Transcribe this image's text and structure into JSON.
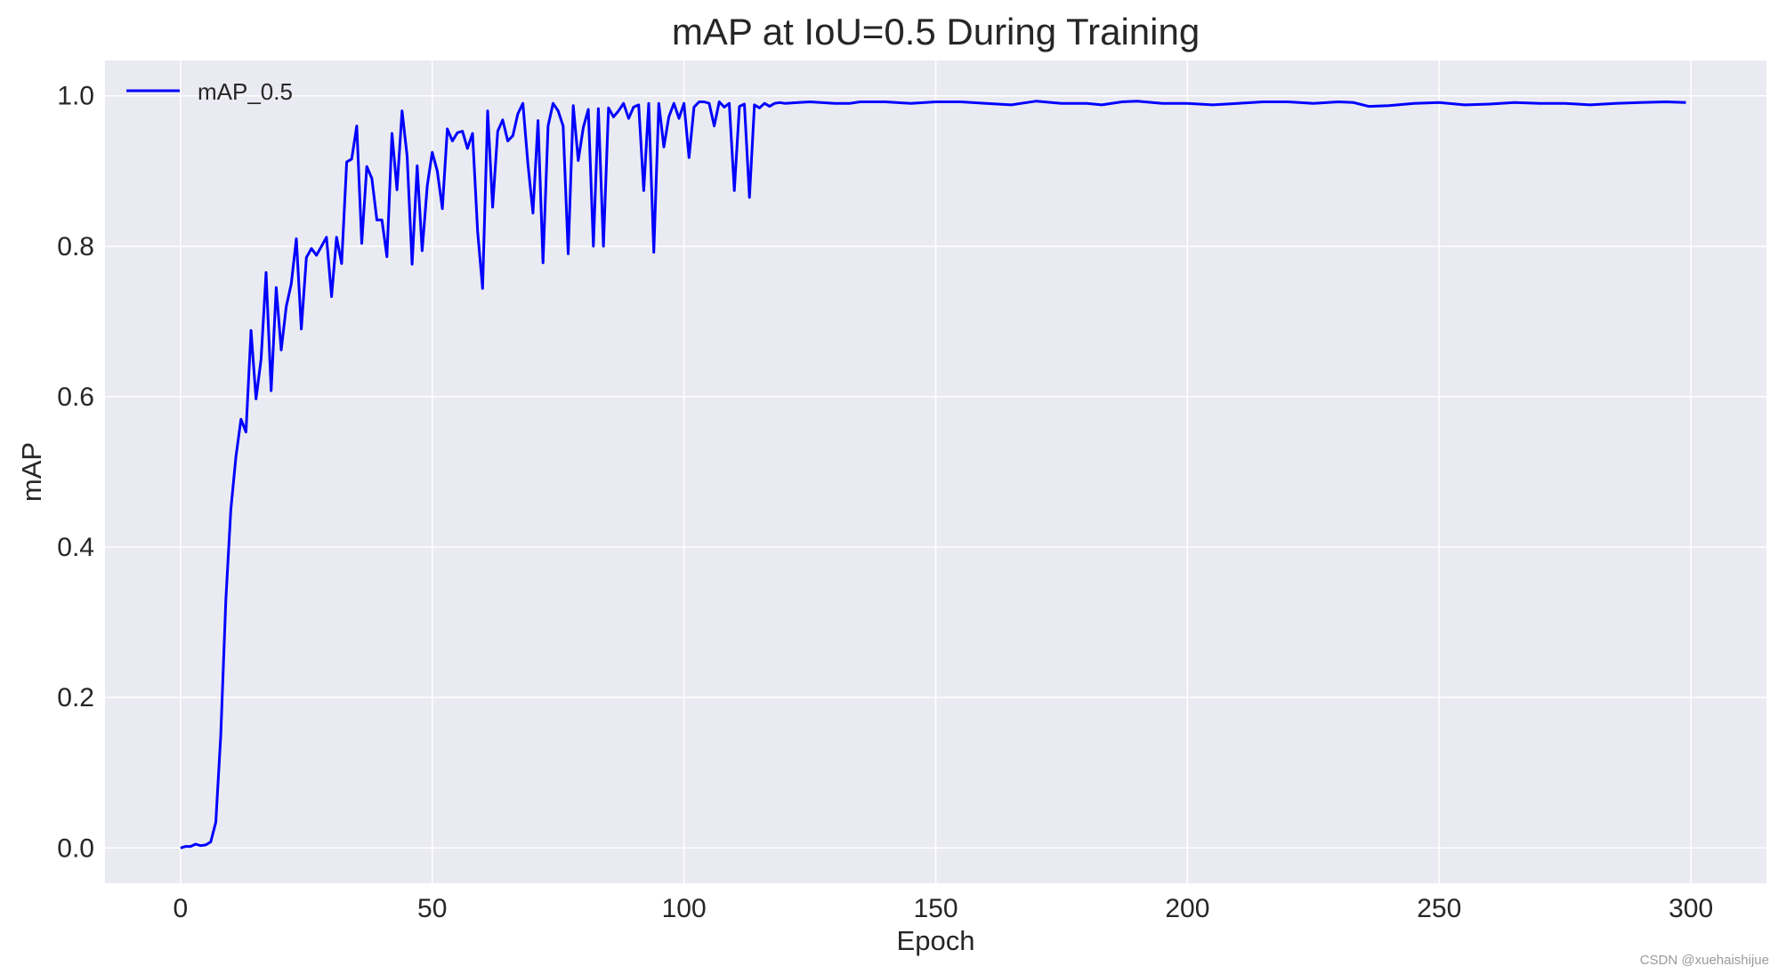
{
  "colors": {
    "background": "#ffffff",
    "plot_background": "#eaeaf2",
    "grid": "#ffffff",
    "series": "#0000ff",
    "text": "#262626"
  },
  "watermark": "CSDN @xuehaishijue",
  "chart_data": {
    "type": "line",
    "title": "mAP at IoU=0.5 During Training",
    "xlabel": "Epoch",
    "ylabel": "mAP",
    "xlim": [
      -15,
      315
    ],
    "ylim": [
      -0.047,
      1.047
    ],
    "xticks": [
      0,
      50,
      100,
      150,
      200,
      250,
      300
    ],
    "xtick_labels": [
      "0",
      "50",
      "100",
      "150",
      "200",
      "250",
      "300"
    ],
    "yticks": [
      0.0,
      0.2,
      0.4,
      0.6,
      0.8,
      1.0
    ],
    "ytick_labels": [
      "0.0",
      "0.2",
      "0.4",
      "0.6",
      "0.8",
      "1.0"
    ],
    "grid": true,
    "legend_position": "top-left",
    "series": [
      {
        "name": "mAP_0.5",
        "color": "#0000ff",
        "x": [
          0,
          1,
          2,
          3,
          4,
          5,
          6,
          7,
          8,
          9,
          10,
          11,
          12,
          13,
          14,
          15,
          16,
          17,
          18,
          19,
          20,
          21,
          22,
          23,
          24,
          25,
          26,
          27,
          28,
          29,
          30,
          31,
          32,
          33,
          34,
          35,
          36,
          37,
          38,
          39,
          40,
          41,
          42,
          43,
          44,
          45,
          46,
          47,
          48,
          49,
          50,
          51,
          52,
          53,
          54,
          55,
          56,
          57,
          58,
          59,
          60,
          61,
          62,
          63,
          64,
          65,
          66,
          67,
          68,
          69,
          70,
          71,
          72,
          73,
          74,
          75,
          76,
          77,
          78,
          79,
          80,
          81,
          82,
          83,
          84,
          85,
          86,
          87,
          88,
          89,
          90,
          91,
          92,
          93,
          94,
          95,
          96,
          97,
          98,
          99,
          100,
          101,
          102,
          103,
          104,
          105,
          106,
          107,
          108,
          109,
          110,
          111,
          112,
          113,
          114,
          115,
          116,
          117,
          118,
          119,
          120,
          125,
          130,
          133,
          135,
          140,
          145,
          150,
          155,
          160,
          165,
          170,
          175,
          180,
          183,
          187,
          190,
          195,
          200,
          205,
          210,
          215,
          220,
          225,
          230,
          233,
          236,
          240,
          245,
          250,
          255,
          260,
          265,
          270,
          275,
          280,
          285,
          290,
          295,
          299
        ],
        "y": [
          0.0,
          0.002,
          0.002,
          0.005,
          0.003,
          0.004,
          0.008,
          0.034,
          0.15,
          0.33,
          0.45,
          0.52,
          0.57,
          0.553,
          0.688,
          0.597,
          0.65,
          0.765,
          0.608,
          0.745,
          0.662,
          0.72,
          0.75,
          0.81,
          0.69,
          0.785,
          0.797,
          0.788,
          0.8,
          0.812,
          0.733,
          0.812,
          0.777,
          0.912,
          0.916,
          0.96,
          0.804,
          0.906,
          0.89,
          0.835,
          0.835,
          0.786,
          0.95,
          0.875,
          0.98,
          0.92,
          0.776,
          0.907,
          0.794,
          0.88,
          0.925,
          0.9,
          0.85,
          0.956,
          0.94,
          0.951,
          0.953,
          0.93,
          0.95,
          0.82,
          0.744,
          0.98,
          0.852,
          0.953,
          0.968,
          0.94,
          0.947,
          0.976,
          0.99,
          0.91,
          0.844,
          0.967,
          0.778,
          0.96,
          0.99,
          0.98,
          0.96,
          0.79,
          0.987,
          0.914,
          0.958,
          0.982,
          0.8,
          0.983,
          0.8,
          0.984,
          0.972,
          0.98,
          0.99,
          0.97,
          0.985,
          0.988,
          0.874,
          0.99,
          0.792,
          0.99,
          0.932,
          0.972,
          0.99,
          0.97,
          0.99,
          0.918,
          0.985,
          0.992,
          0.992,
          0.99,
          0.96,
          0.992,
          0.985,
          0.99,
          0.874,
          0.986,
          0.989,
          0.865,
          0.988,
          0.984,
          0.99,
          0.986,
          0.99,
          0.991,
          0.99,
          0.992,
          0.99,
          0.99,
          0.992,
          0.992,
          0.99,
          0.992,
          0.992,
          0.99,
          0.988,
          0.993,
          0.99,
          0.99,
          0.988,
          0.992,
          0.993,
          0.99,
          0.99,
          0.988,
          0.99,
          0.992,
          0.992,
          0.99,
          0.992,
          0.991,
          0.986,
          0.987,
          0.99,
          0.991,
          0.988,
          0.989,
          0.991,
          0.99,
          0.99,
          0.988,
          0.99,
          0.991,
          0.992,
          0.991
        ]
      }
    ]
  }
}
